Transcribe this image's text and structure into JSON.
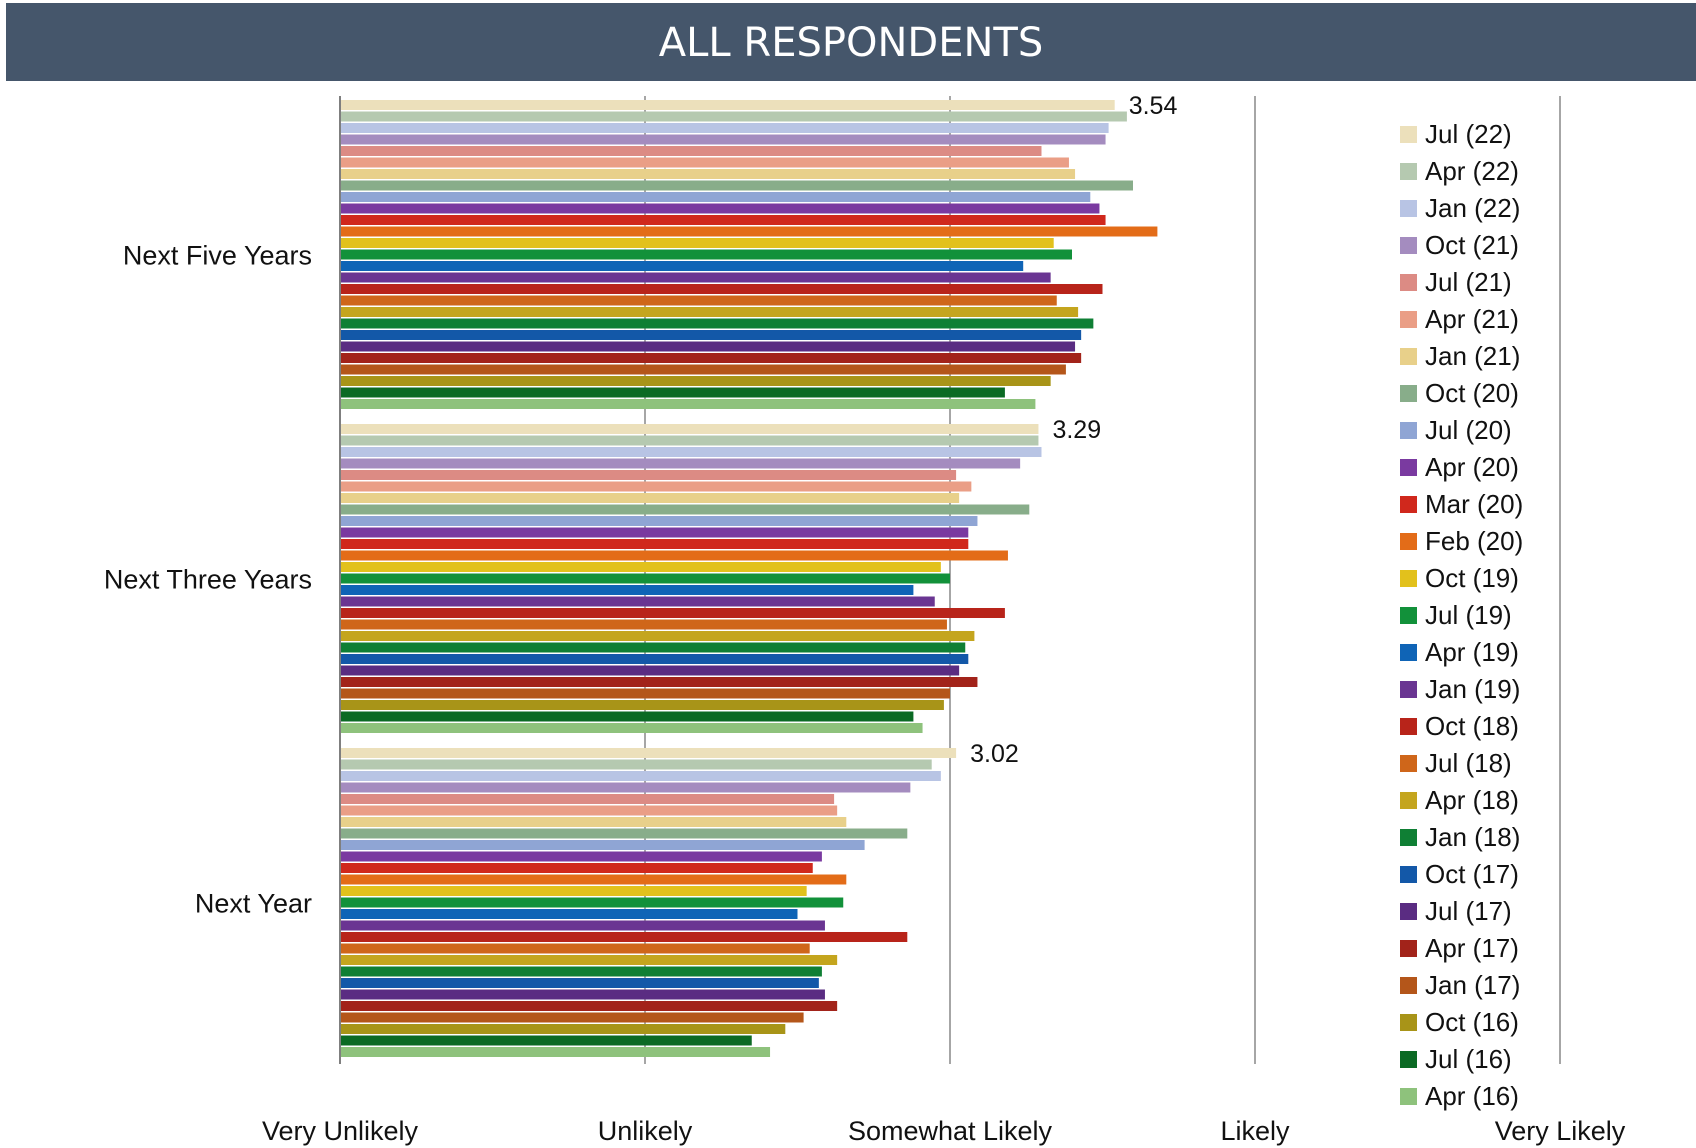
{
  "chart_data": {
    "type": "bar",
    "orientation": "horizontal",
    "title": "ALL RESPONDENTS",
    "categories": [
      "Next Five Years",
      "Next Three Years",
      "Next Year"
    ],
    "scale_labels": [
      "Very Unlikely",
      "Unlikely",
      "Somewhat Likely",
      "Likely",
      "Very Likely"
    ],
    "xlim": [
      1,
      5
    ],
    "grid": true,
    "legend_position": "right",
    "data_labels": [
      "3.54",
      "3.29",
      "3.02"
    ],
    "series": [
      {
        "name": "Jul (22)",
        "color": "#ece0bb",
        "values": [
          3.54,
          3.29,
          3.02
        ]
      },
      {
        "name": "Apr (22)",
        "color": "#b5c9b0",
        "values": [
          3.58,
          3.29,
          2.94
        ]
      },
      {
        "name": "Jan (22)",
        "color": "#b8c4e4",
        "values": [
          3.52,
          3.3,
          2.97
        ]
      },
      {
        "name": "Oct (21)",
        "color": "#a48cbf",
        "values": [
          3.51,
          3.23,
          2.87
        ]
      },
      {
        "name": "Jul (21)",
        "color": "#dc8b84",
        "values": [
          3.3,
          3.02,
          2.62
        ]
      },
      {
        "name": "Apr (21)",
        "color": "#ea9e86",
        "values": [
          3.39,
          3.07,
          2.63
        ]
      },
      {
        "name": "Jan (21)",
        "color": "#e8d08a",
        "values": [
          3.41,
          3.03,
          2.66
        ]
      },
      {
        "name": "Oct (20)",
        "color": "#88ad8a",
        "values": [
          3.6,
          3.26,
          2.86
        ]
      },
      {
        "name": "Jul (20)",
        "color": "#8fa5d4",
        "values": [
          3.46,
          3.09,
          2.72
        ]
      },
      {
        "name": "Apr (20)",
        "color": "#7a3aa0",
        "values": [
          3.49,
          3.06,
          2.58
        ]
      },
      {
        "name": "Mar (20)",
        "color": "#d0281c",
        "values": [
          3.51,
          3.06,
          2.55
        ]
      },
      {
        "name": "Feb (20)",
        "color": "#e36c18",
        "values": [
          3.68,
          3.19,
          2.66
        ]
      },
      {
        "name": "Oct (19)",
        "color": "#e2c11c",
        "values": [
          3.34,
          2.97,
          2.53
        ]
      },
      {
        "name": "Jul (19)",
        "color": "#12913a",
        "values": [
          3.4,
          3.0,
          2.65
        ]
      },
      {
        "name": "Apr (19)",
        "color": "#0f64b6",
        "values": [
          3.24,
          2.88,
          2.5
        ]
      },
      {
        "name": "Jan (19)",
        "color": "#6a3592",
        "values": [
          3.33,
          2.95,
          2.59
        ]
      },
      {
        "name": "Oct (18)",
        "color": "#b8241a",
        "values": [
          3.5,
          3.18,
          2.86
        ]
      },
      {
        "name": "Jul (18)",
        "color": "#cf661a",
        "values": [
          3.35,
          2.99,
          2.54
        ]
      },
      {
        "name": "Apr (18)",
        "color": "#c4a51e",
        "values": [
          3.42,
          3.08,
          2.63
        ]
      },
      {
        "name": "Jan (18)",
        "color": "#0f7f34",
        "values": [
          3.47,
          3.05,
          2.58
        ]
      },
      {
        "name": "Oct (17)",
        "color": "#1358a8",
        "values": [
          3.43,
          3.06,
          2.57
        ]
      },
      {
        "name": "Jul (17)",
        "color": "#5a2c82",
        "values": [
          3.41,
          3.03,
          2.59
        ]
      },
      {
        "name": "Apr (17)",
        "color": "#a2231a",
        "values": [
          3.43,
          3.09,
          2.63
        ]
      },
      {
        "name": "Jan (17)",
        "color": "#b4561a",
        "values": [
          3.38,
          3.0,
          2.52
        ]
      },
      {
        "name": "Oct (16)",
        "color": "#a89418",
        "values": [
          3.33,
          2.98,
          2.46
        ]
      },
      {
        "name": "Jul (16)",
        "color": "#0b6a24",
        "values": [
          3.18,
          2.88,
          2.35
        ]
      },
      {
        "name": "Apr (16)",
        "color": "#8ec27c",
        "values": [
          3.28,
          2.91,
          2.41
        ]
      }
    ]
  }
}
